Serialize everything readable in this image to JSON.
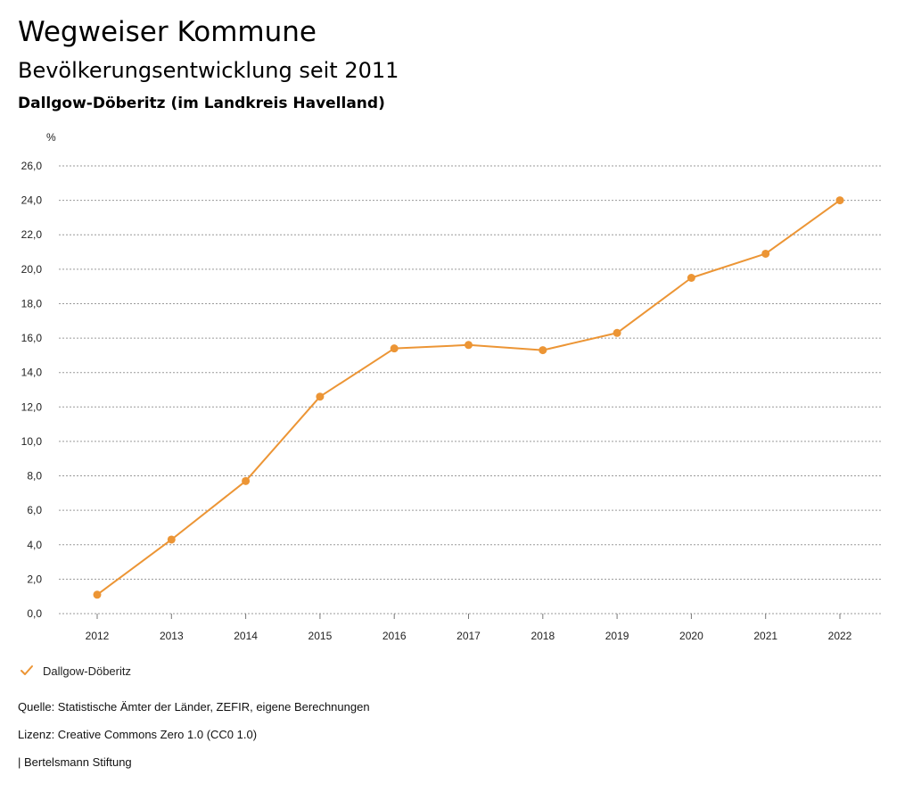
{
  "header": {
    "title": "Wegweiser Kommune",
    "subtitle": "Bevölkerungsentwicklung seit 2011",
    "region": "Dallgow-Döberitz (im Landkreis Havelland)"
  },
  "chart_data": {
    "type": "line",
    "ylabel": "%",
    "ylim": [
      0,
      26
    ],
    "y_ticks": [
      "0,0",
      "2,0",
      "4,0",
      "6,0",
      "8,0",
      "10,0",
      "12,0",
      "14,0",
      "16,0",
      "18,0",
      "20,0",
      "22,0",
      "24,0",
      "26,0"
    ],
    "y_tick_values": [
      0,
      2,
      4,
      6,
      8,
      10,
      12,
      14,
      16,
      18,
      20,
      22,
      24,
      26
    ],
    "categories": [
      "2012",
      "2013",
      "2014",
      "2015",
      "2016",
      "2017",
      "2018",
      "2019",
      "2020",
      "2021",
      "2022"
    ],
    "series": [
      {
        "name": "Dallgow-Döberitz",
        "color": "#ec9535",
        "values": [
          1.1,
          4.3,
          7.7,
          12.6,
          15.4,
          15.6,
          15.3,
          16.3,
          19.5,
          20.9,
          24.0
        ]
      }
    ],
    "grid": true,
    "gridline_style": "dotted",
    "legend_position": "bottom-left"
  },
  "footer": {
    "source": "Quelle: Statistische Ämter der Länder, ZEFIR, eigene Berechnungen",
    "license": "Lizenz: Creative Commons Zero 1.0 (CC0 1.0)",
    "credit": "| Bertelsmann Stiftung"
  },
  "legend_icon": "checkmark-icon"
}
